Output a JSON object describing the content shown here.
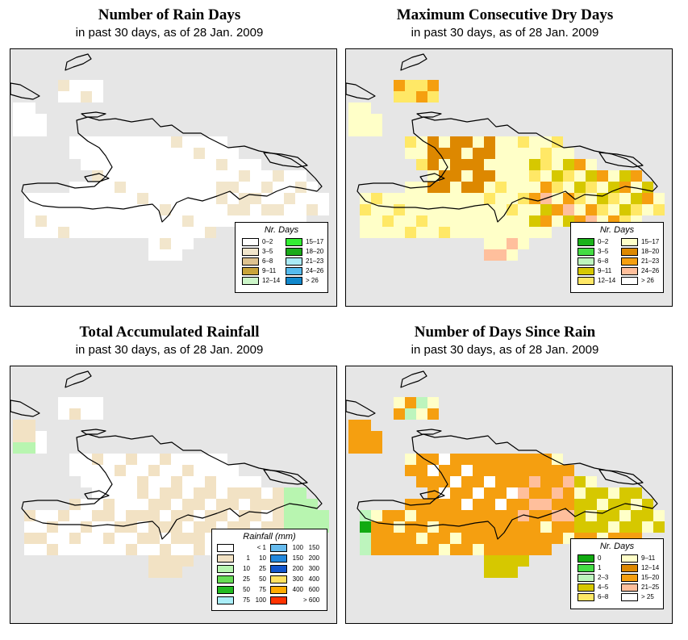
{
  "colors": {
    "ocean": "#e6e6e6",
    "coast": "#000000"
  },
  "panels": [
    {
      "id": "rain-days",
      "title": "Number of Rain Days",
      "subtitle": "in past 30 days, as of  28 Jan. 2009",
      "legend": {
        "title": "Nr. Days",
        "entries": [
          {
            "label": "0–2",
            "color": "#ffffff"
          },
          {
            "label": "3–5",
            "color": "#f2e6cc"
          },
          {
            "label": "6–8",
            "color": "#dfc38f"
          },
          {
            "label": "9–11",
            "color": "#c9a43a"
          },
          {
            "label": "12–14",
            "color": "#ccf5c8"
          },
          {
            "label": "15–17",
            "color": "#33ee33"
          },
          {
            "label": "18–20",
            "color": "#1aaa1a"
          },
          {
            "label": "21–23",
            "color": "#aaeaf5"
          },
          {
            "label": "24–26",
            "color": "#55bbee"
          },
          {
            "label": "> 26",
            "color": "#1188cc"
          }
        ]
      }
    },
    {
      "id": "dry-days",
      "title": "Maximum Consecutive Dry Days",
      "subtitle": "in past 30 days, as of  28 Jan. 2009",
      "legend": {
        "title": "Nr. Days",
        "entries": [
          {
            "label": "0–2",
            "color": "#1ab21a"
          },
          {
            "label": "3–5",
            "color": "#44dd44"
          },
          {
            "label": "6–8",
            "color": "#bdf5bd"
          },
          {
            "label": "9–11",
            "color": "#d6c800"
          },
          {
            "label": "12–14",
            "color": "#ffe866"
          },
          {
            "label": "15–17",
            "color": "#ffffc8"
          },
          {
            "label": "18–20",
            "color": "#dd8800"
          },
          {
            "label": "21–23",
            "color": "#f59f10"
          },
          {
            "label": "24–26",
            "color": "#ffbf9c"
          },
          {
            "label": "> 26",
            "color": "#ffffff"
          }
        ]
      }
    },
    {
      "id": "rainfall",
      "title": "Total Accumulated Rainfall",
      "subtitle": "in past 30 days, as of  28 Jan. 2009",
      "legend": {
        "title": "Rainfall (mm)",
        "entries": [
          {
            "a": "",
            "b": "< 1",
            "color": "#ffffff"
          },
          {
            "a": "1",
            "b": "10",
            "color": "#f2e2c4"
          },
          {
            "a": "10",
            "b": "25",
            "color": "#b8f5b0"
          },
          {
            "a": "25",
            "b": "50",
            "color": "#66dd55"
          },
          {
            "a": "50",
            "b": "75",
            "color": "#22bb22"
          },
          {
            "a": "75",
            "b": "100",
            "color": "#aaeef8"
          },
          {
            "a": "100",
            "b": "150",
            "color": "#66bbee"
          },
          {
            "a": "150",
            "b": "200",
            "color": "#2288dd"
          },
          {
            "a": "200",
            "b": "300",
            "color": "#1155cc"
          },
          {
            "a": "300",
            "b": "400",
            "color": "#ffe060"
          },
          {
            "a": "400",
            "b": "600",
            "color": "#ffaa00"
          },
          {
            "a": "",
            "b": "> 600",
            "color": "#ff3300"
          }
        ]
      }
    },
    {
      "id": "days-since-rain",
      "title": "Number of Days Since Rain",
      "subtitle": "in past 30 days, as of  28 Jan. 2009",
      "legend": {
        "title": "Nr. Days",
        "entries": [
          {
            "label": "0",
            "color": "#11aa11"
          },
          {
            "label": "1",
            "color": "#44dd44"
          },
          {
            "label": "2–3",
            "color": "#bdf5bd"
          },
          {
            "label": "4–5",
            "color": "#d6c800"
          },
          {
            "label": "6–8",
            "color": "#ffe866"
          },
          {
            "label": "9–11",
            "color": "#ffffc8"
          },
          {
            "label": "12–14",
            "color": "#dd8800"
          },
          {
            "label": "15–20",
            "color": "#f59f10"
          },
          {
            "label": "21–25",
            "color": "#ffbf9c"
          },
          {
            "label": "> 25",
            "color": "#ffffff"
          }
        ]
      }
    }
  ]
}
